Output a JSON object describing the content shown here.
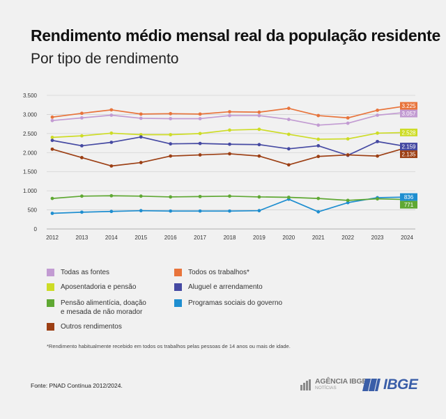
{
  "header": {
    "title": "Rendimento médio mensal real da população residente",
    "subtitle": "Por tipo de rendimento"
  },
  "chart_data": {
    "type": "line",
    "title": "Rendimento médio mensal real da população residente",
    "subtitle": "Por tipo de rendimento",
    "xlabel": "",
    "ylabel": "",
    "ylim": [
      0,
      3500
    ],
    "y_ticks": [
      0,
      500,
      1000,
      1500,
      2000,
      2500,
      3000,
      3500
    ],
    "y_tick_labels": [
      "0",
      "500",
      "1.000",
      "1.500",
      "2.000",
      "2.500",
      "3.000",
      "3.500"
    ],
    "grid": true,
    "legend_position": "bottom",
    "x": [
      "2012",
      "2013",
      "2014",
      "2015",
      "2016",
      "2017",
      "2018",
      "2019",
      "2020",
      "2021",
      "2022",
      "2023",
      "2024"
    ],
    "series": [
      {
        "name": "Todos os trabalhos*",
        "color": "#e8743b",
        "values": [
          2930,
          3030,
          3120,
          3010,
          3020,
          3010,
          3070,
          3060,
          3160,
          2970,
          2910,
          3110,
          3225
        ],
        "end_label": "3.225"
      },
      {
        "name": "Todas as fontes",
        "color": "#c29bd2",
        "values": [
          2840,
          2910,
          2980,
          2900,
          2890,
          2890,
          2970,
          2970,
          2870,
          2720,
          2770,
          2980,
          3057
        ],
        "end_label": "3.057"
      },
      {
        "name": "Aposentadoria e pensão",
        "color": "#cddc26",
        "values": [
          2400,
          2440,
          2510,
          2470,
          2470,
          2500,
          2590,
          2610,
          2480,
          2350,
          2360,
          2510,
          2528
        ],
        "end_label": "2.528"
      },
      {
        "name": "Aluguel e arrendamento",
        "color": "#4549a2",
        "values": [
          2320,
          2180,
          2270,
          2410,
          2230,
          2240,
          2220,
          2210,
          2100,
          2180,
          1930,
          2290,
          2159
        ],
        "end_label": "2.159"
      },
      {
        "name": "Outros rendimentos",
        "color": "#9c3f14",
        "values": [
          2090,
          1870,
          1650,
          1740,
          1910,
          1940,
          1970,
          1910,
          1680,
          1900,
          1940,
          1910,
          2135
        ],
        "end_label": "2.135"
      },
      {
        "name": "Programas sociais do governo",
        "color": "#1e8ed0",
        "values": [
          410,
          440,
          460,
          480,
          470,
          470,
          470,
          480,
          780,
          450,
          690,
          820,
          836
        ],
        "end_label": "836"
      },
      {
        "name": "Pensão alimentícia, doação e mesada de não morador",
        "color": "#5fa833",
        "values": [
          800,
          860,
          870,
          860,
          840,
          850,
          860,
          840,
          830,
          800,
          750,
          790,
          771
        ],
        "end_label": "771"
      }
    ]
  },
  "legend": {
    "items": [
      {
        "label": "Todas as fontes",
        "color": "#c29bd2"
      },
      {
        "label": "Todos os trabalhos*",
        "color": "#e8743b"
      },
      {
        "label": "Aposentadoria e pensão",
        "color": "#cddc26"
      },
      {
        "label": "Aluguel e arrendamento",
        "color": "#4549a2"
      },
      {
        "label": "Pensão alimentícia, doação\ne mesada de não morador",
        "color": "#5fa833"
      },
      {
        "label": "Programas sociais do governo",
        "color": "#1e8ed0"
      },
      {
        "label": "Outros rendimentos",
        "color": "#9c3f14"
      }
    ]
  },
  "footnote": "*Rendimento habitualmente recebido em todos os trabalhos pelas pessoas de 14 anos ou mais de idade.",
  "source": "Fonte: PNAD Contínua 2012/2024.",
  "logos": {
    "agencia_line1": "AGÊNCIA IBGE",
    "agencia_line2": "NOTÍCIAS",
    "ibge": "IBGE",
    "agencia_icon": "agencia-ibge-logo-icon",
    "ibge_icon": "ibge-logo-icon"
  }
}
